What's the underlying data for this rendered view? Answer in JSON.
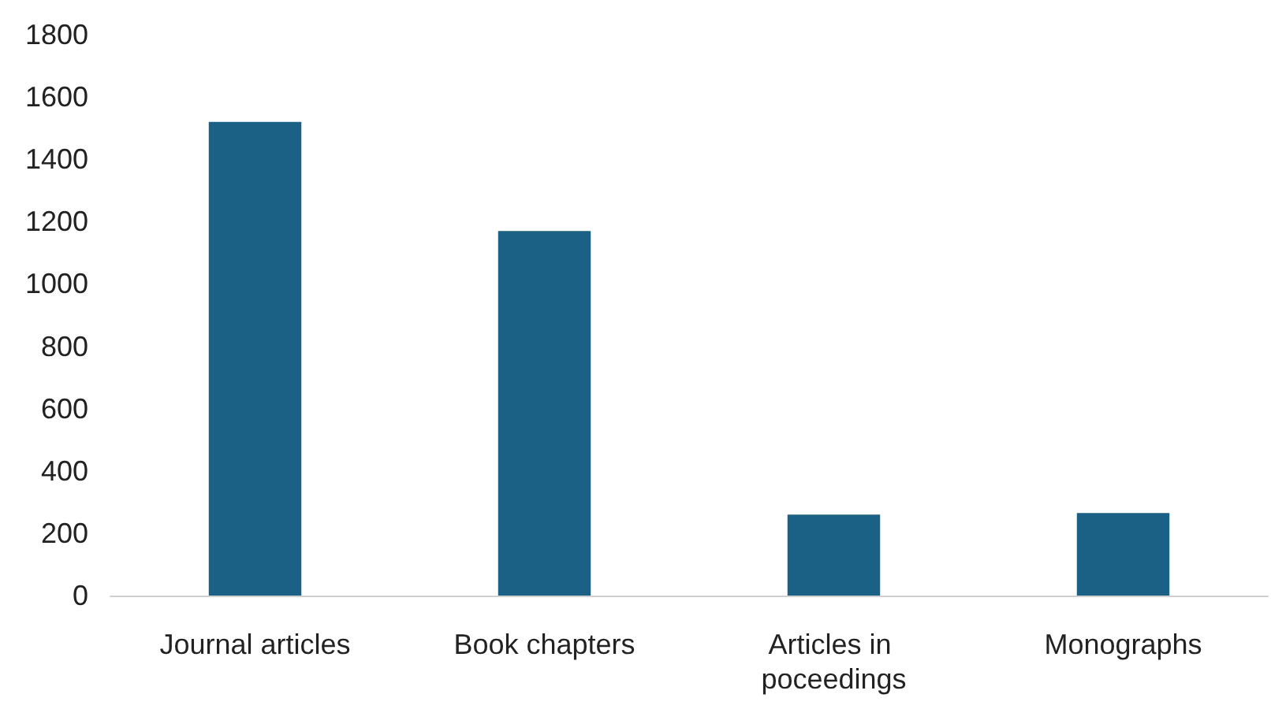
{
  "chart_data": {
    "type": "bar",
    "categories": [
      "Journal articles",
      "Book chapters",
      "Articles in poceedings",
      "Monographs"
    ],
    "values": [
      1520,
      1170,
      260,
      265
    ],
    "color": "#1a6185",
    "ylim": [
      0,
      1800
    ],
    "yticks": [
      0,
      200,
      400,
      600,
      800,
      1000,
      1200,
      1400,
      1600,
      1800
    ],
    "grid": false
  }
}
